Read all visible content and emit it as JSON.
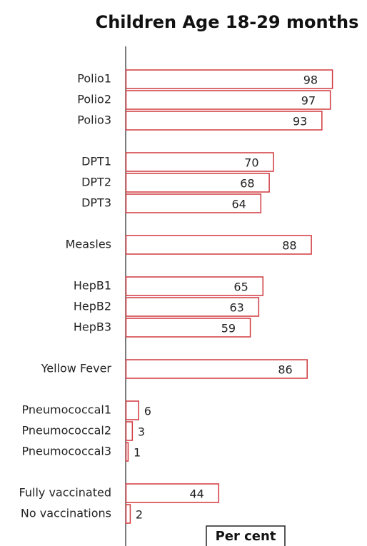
{
  "chart_data": {
    "type": "hbar",
    "title": "Children Age 18-29 months",
    "x_label": "Per cent",
    "categories": [
      "Polio1",
      "Polio2",
      "Polio3",
      null,
      "DPT1",
      "DPT2",
      "DPT3",
      null,
      "Measles",
      null,
      "HepB1",
      "HepB2",
      "HepB3",
      null,
      "Yellow Fever",
      null,
      "Pneumococcal1",
      "Pneumococcal2",
      "Pneumococcal3",
      null,
      "Fully vaccinated",
      "No vaccinations"
    ],
    "values": [
      98,
      97,
      93,
      null,
      70,
      68,
      64,
      null,
      88,
      null,
      65,
      63,
      59,
      null,
      86,
      null,
      6,
      3,
      1,
      null,
      44,
      2
    ],
    "color": "#d0393e",
    "xlim": [
      0,
      100
    ]
  }
}
